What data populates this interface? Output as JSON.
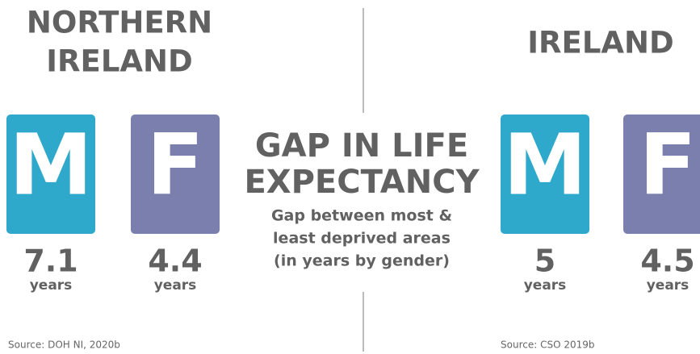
{
  "left": {
    "title": [
      "NORTHERN",
      "IRELAND"
    ],
    "male": {
      "letter": "M",
      "value": 7.1,
      "unit": "years"
    },
    "female": {
      "letter": "F",
      "value": 4.4,
      "unit": "years"
    },
    "source": "Source: DOH NI, 2020b"
  },
  "center": {
    "title": [
      "GAP IN LIFE",
      "EXPECTANCY"
    ],
    "subtitle": [
      "Gap between most &",
      "least deprived areas",
      "(in years by gender)"
    ]
  },
  "right": {
    "title": [
      "IRELAND"
    ],
    "male": {
      "letter": "M",
      "value": 5,
      "unit": "years"
    },
    "female": {
      "letter": "F",
      "value": 4.5,
      "unit": "years"
    },
    "source": "Source: CSO 2019b"
  }
}
